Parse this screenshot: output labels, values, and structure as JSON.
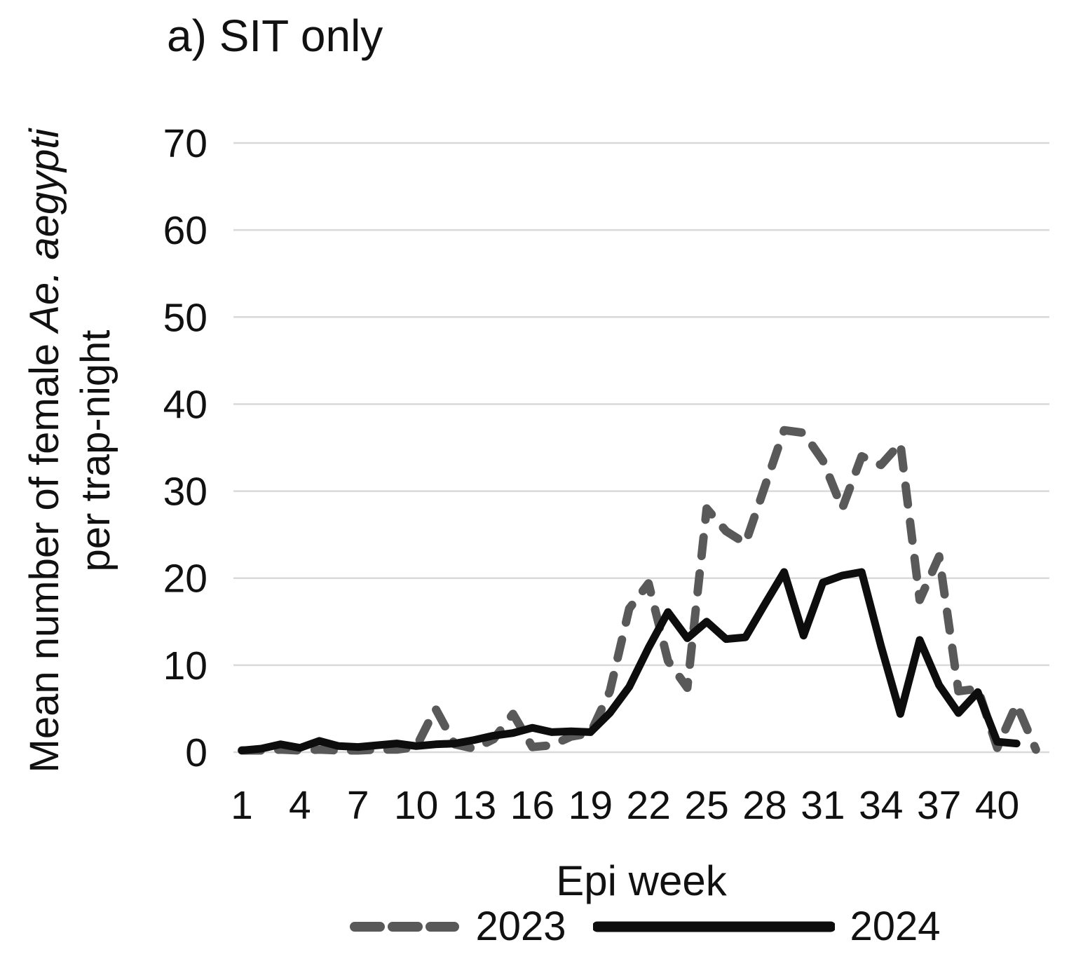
{
  "chart_data": {
    "type": "line",
    "title": "a) SIT only",
    "ylabel": {
      "line1_prefix": "Mean number of female ",
      "line1_italic": "Ae. aegypti",
      "line2": "per trap-night"
    },
    "xlabel": "Epi week",
    "x_axis": {
      "unit": "epi week",
      "first_week": 1,
      "last_week": 42,
      "ticks_shown": [
        1,
        4,
        7,
        10,
        13,
        16,
        19,
        22,
        25,
        28,
        31,
        34,
        37,
        40
      ]
    },
    "y_axis": {
      "min": 0,
      "max": 70,
      "tick_step": 10,
      "gridlines": true
    },
    "legend_position": "bottom-center",
    "colors": {
      "series_2023": "#595959",
      "series_2024": "#0d0d0d",
      "gridline": "#d9d9d9",
      "text": "#111111"
    },
    "legend": [
      {
        "label": "2023",
        "style": "dashed"
      },
      {
        "label": "2024",
        "style": "solid"
      }
    ],
    "series": [
      {
        "name": "2023",
        "style": "dashed",
        "color": "#595959",
        "weeks_start": 1,
        "values": [
          0.2,
          0.2,
          0.3,
          0.2,
          0.3,
          0.2,
          0.2,
          0.3,
          0.3,
          0.6,
          5.0,
          0.9,
          0.4,
          1.5,
          4.4,
          0.6,
          0.8,
          1.8,
          2.2,
          7.0,
          16.5,
          19.4,
          10.5,
          7.4,
          28.0,
          25.4,
          24.0,
          30.5,
          37.0,
          36.7,
          33.5,
          28.0,
          34.0,
          33.0,
          35.5,
          17.5,
          22.5,
          7.0,
          7.3,
          0.5,
          5.5,
          0.3
        ]
      },
      {
        "name": "2024",
        "style": "solid",
        "color": "#0d0d0d",
        "weeks_start": 1,
        "values": [
          0.2,
          0.4,
          0.9,
          0.5,
          1.3,
          0.7,
          0.6,
          0.8,
          1.0,
          0.7,
          0.9,
          1.0,
          1.4,
          1.9,
          2.2,
          2.8,
          2.3,
          2.4,
          2.3,
          4.5,
          7.5,
          12.0,
          16.1,
          13.1,
          15.0,
          13.0,
          13.2,
          17.0,
          20.7,
          13.4,
          19.5,
          20.3,
          20.7,
          12.2,
          4.4,
          12.9,
          7.7,
          4.5,
          6.9,
          1.2,
          1.0
        ]
      }
    ]
  }
}
